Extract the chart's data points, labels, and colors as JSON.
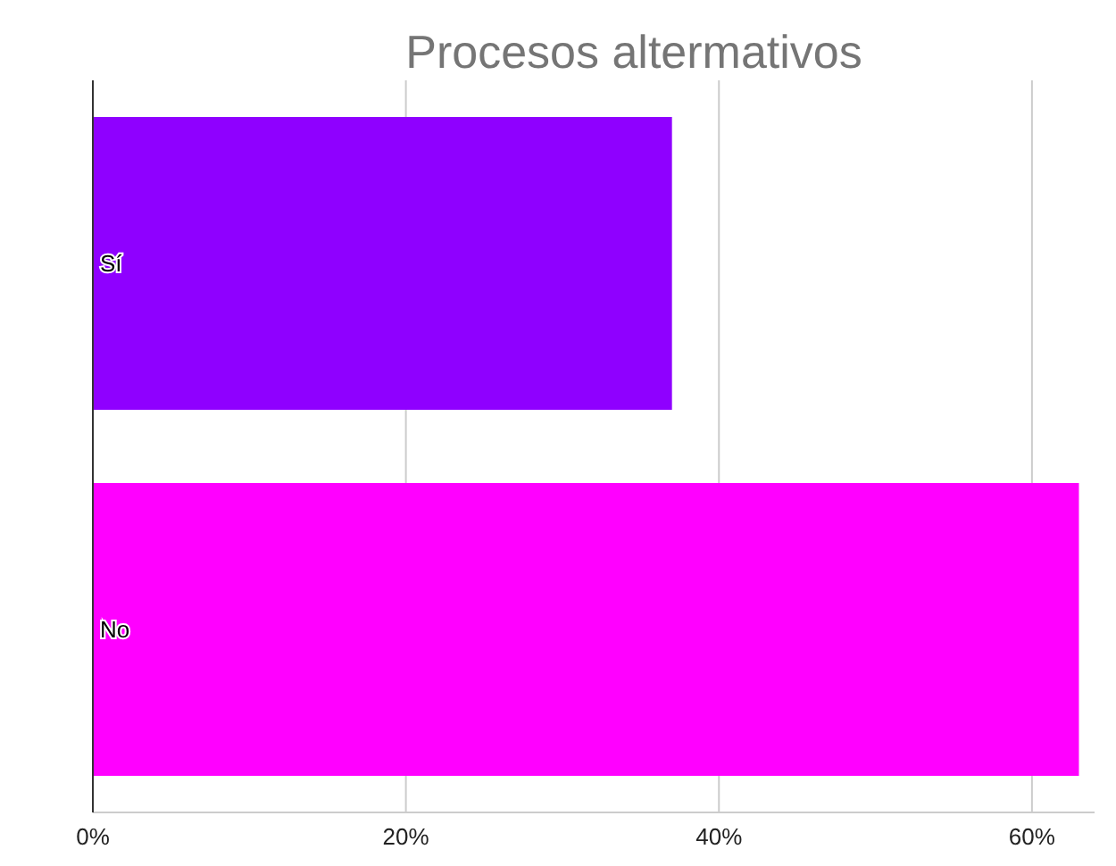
{
  "chart_data": {
    "type": "bar",
    "title": "Procesos altermativos",
    "orientation": "horizontal",
    "categories": [
      "Sí",
      "No"
    ],
    "values": [
      37,
      63
    ],
    "colors": [
      "#8f00ff",
      "#ff00ff"
    ],
    "xlim": [
      0,
      64
    ],
    "xticks": [
      {
        "value": 0,
        "label": "0%"
      },
      {
        "value": 20,
        "label": "20%"
      },
      {
        "value": 40,
        "label": "40%"
      },
      {
        "value": 60,
        "label": "60%"
      }
    ],
    "grid": "x"
  }
}
